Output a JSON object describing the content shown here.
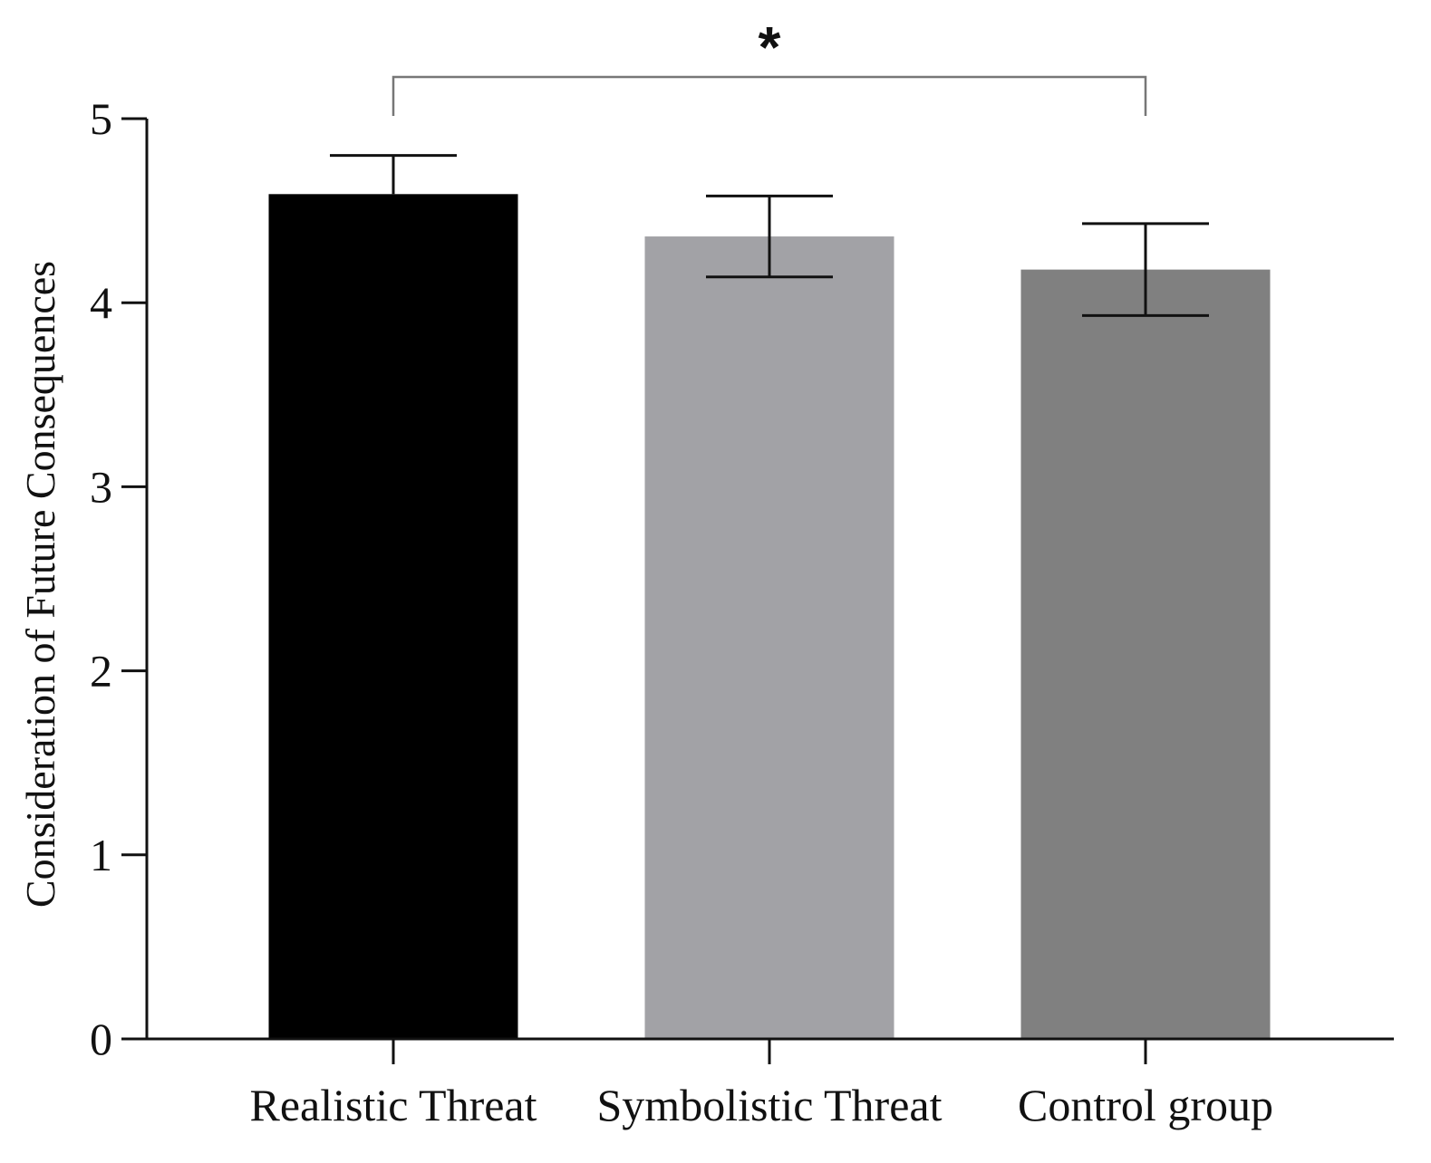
{
  "chart_data": {
    "type": "bar",
    "categories": [
      "Realistic Threat",
      "Symbolistic Threat",
      "Control group"
    ],
    "values": [
      4.59,
      4.36,
      4.18
    ],
    "errors": [
      0.21,
      0.22,
      0.25
    ],
    "colors": [
      "#000000",
      "#a2a2a6",
      "#808080"
    ],
    "ylabel": "Consideration of Future Consequences",
    "xlabel": "",
    "ylim": [
      0,
      5
    ],
    "yticks": [
      0,
      1,
      2,
      3,
      4,
      5
    ],
    "significance": {
      "from": "Realistic Threat",
      "to": "Control group",
      "label": "*"
    },
    "grid": false,
    "legend": "none"
  }
}
